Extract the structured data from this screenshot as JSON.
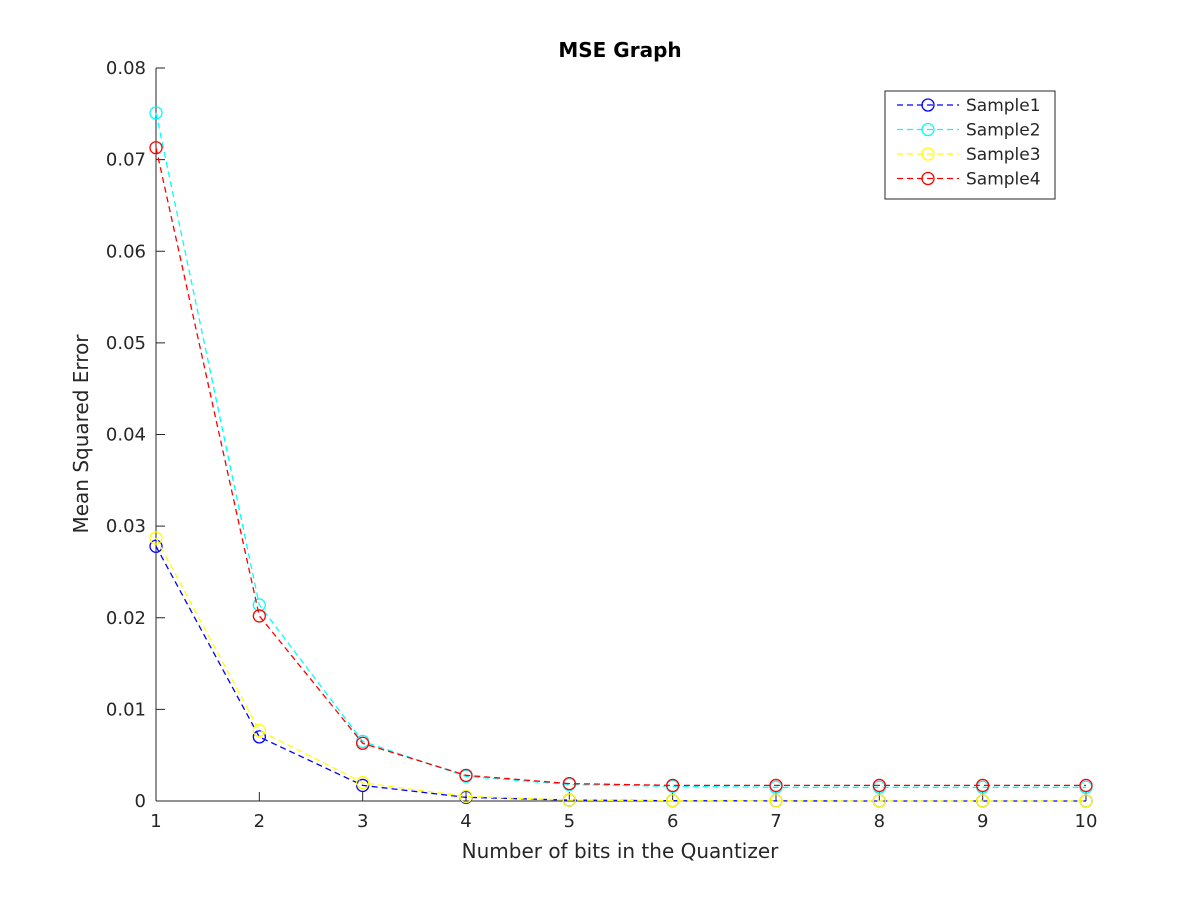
{
  "chart_data": {
    "type": "line",
    "title": "MSE Graph",
    "xlabel": "Number of bits in the Quantizer",
    "ylabel": "Mean Squared Error",
    "xlim": [
      1,
      10
    ],
    "ylim": [
      0,
      0.08
    ],
    "x": [
      1,
      2,
      3,
      4,
      5,
      6,
      7,
      8,
      9,
      10
    ],
    "x_ticks": [
      1,
      2,
      3,
      4,
      5,
      6,
      7,
      8,
      9,
      10
    ],
    "y_ticks": [
      0,
      0.01,
      0.02,
      0.03,
      0.04,
      0.05,
      0.06,
      0.07,
      0.08
    ],
    "y_tick_labels": [
      "0",
      "0.01",
      "0.02",
      "0.03",
      "0.04",
      "0.05",
      "0.06",
      "0.07",
      "0.08"
    ],
    "grid": false,
    "legend_position": "top-right",
    "line_style": "dashed",
    "marker": "circle",
    "series": [
      {
        "name": "Sample1",
        "color": "#0000ff",
        "values": [
          0.0278,
          0.007,
          0.0017,
          0.0004,
          0.0001,
          3e-05,
          1e-05,
          3e-06,
          1e-06,
          3e-07
        ]
      },
      {
        "name": "Sample2",
        "color": "#00ffff",
        "values": [
          0.0751,
          0.0214,
          0.0065,
          0.0027,
          0.0018,
          0.0016,
          0.0015,
          0.0015,
          0.0015,
          0.0015
        ]
      },
      {
        "name": "Sample3",
        "color": "#ffff00",
        "values": [
          0.0287,
          0.0077,
          0.002,
          0.0005,
          0.0001,
          3e-05,
          1e-05,
          3e-06,
          1e-06,
          3e-07
        ]
      },
      {
        "name": "Sample4",
        "color": "#ff0000",
        "values": [
          0.0713,
          0.0202,
          0.0063,
          0.0028,
          0.0019,
          0.0017,
          0.0017,
          0.0017,
          0.0017,
          0.0017
        ]
      }
    ]
  }
}
